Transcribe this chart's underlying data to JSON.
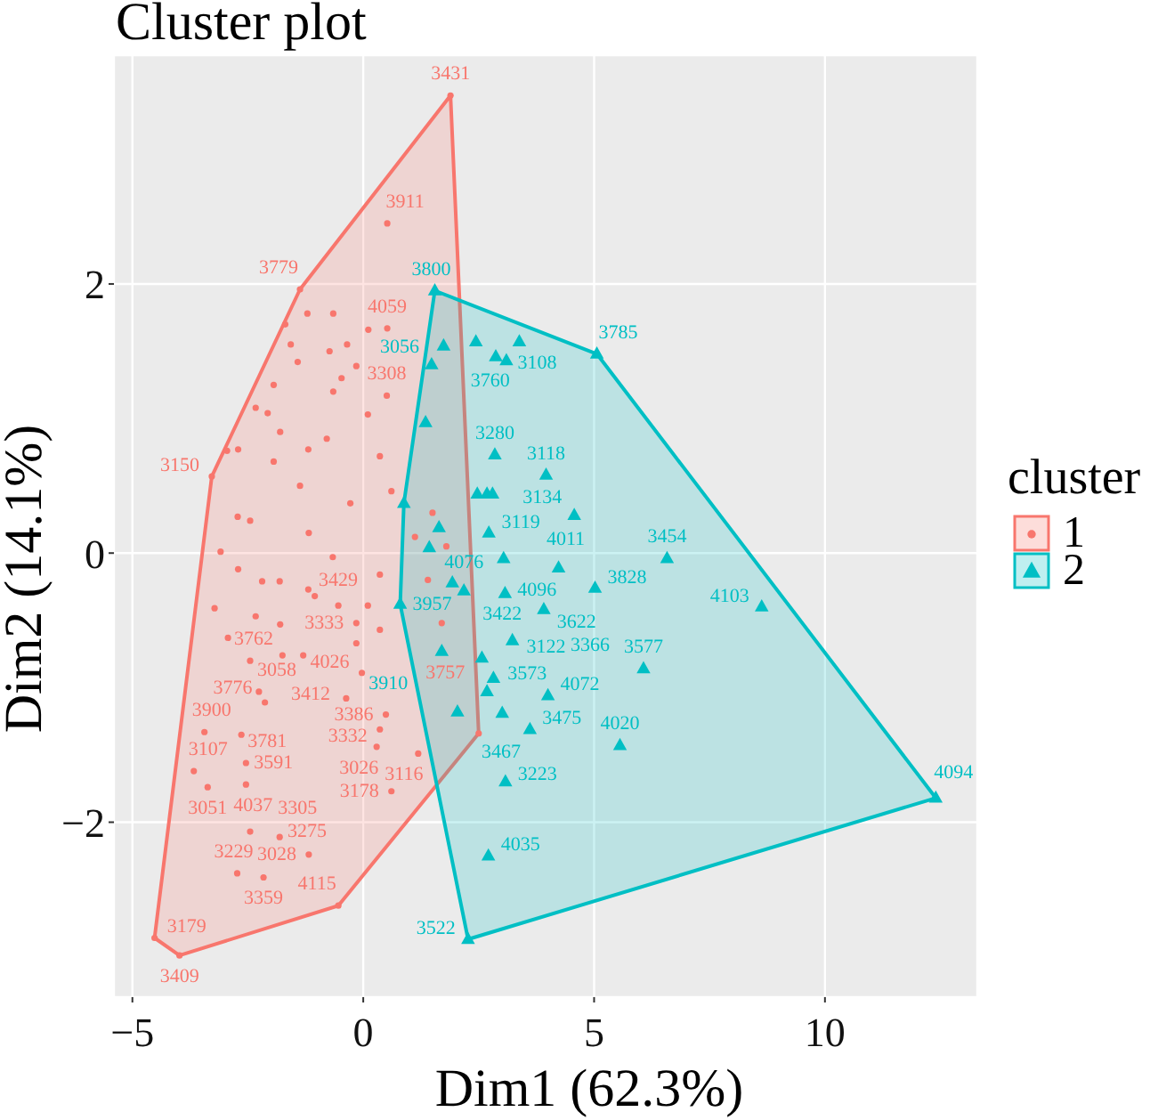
{
  "chart_data": {
    "type": "scatter",
    "title": "Cluster plot",
    "xlabel": "Dim1 (62.3%)",
    "ylabel": "Dim2 (14.1%)",
    "legend_title": "cluster",
    "legend": "right",
    "grid": true,
    "xlim": [
      -5.4,
      13.3
    ],
    "ylim": [
      -3.3,
      3.7
    ],
    "xticks": [
      {
        "value": -5,
        "label": "−5"
      },
      0,
      5,
      10
    ],
    "yticks": [
      {
        "value": -2,
        "label": "−2"
      },
      0,
      2
    ],
    "series": [
      {
        "type": "area",
        "color": "#f8766d",
        "x": [
          1.89,
          2.5,
          -0.54,
          -3.98,
          -4.52,
          -3.28,
          -1.37
        ],
        "values": [
          3.4,
          -1.34,
          -2.62,
          -2.99,
          -2.86,
          0.57,
          1.96
        ]
      },
      {
        "type": "area",
        "color": "#00bfc4",
        "x": [
          1.55,
          5.06,
          12.4,
          2.27,
          0.8,
          0.88
        ],
        "values": [
          1.95,
          1.48,
          -1.82,
          -2.87,
          -0.38,
          0.37
        ]
      },
      {
        "name": "1",
        "marker": "circle",
        "color": "#f8766d",
        "x": [
          1.89,
          0.52,
          -1.37,
          -1.21,
          0.52,
          -1.69,
          -0.73,
          -0.65,
          0.11,
          -0.35,
          -1.57,
          -0.15,
          -1.42,
          0.51,
          -0.47,
          -0.65,
          -2.33,
          -1.94,
          -2.07,
          -1.8,
          -2.95,
          -1.19,
          -2.71,
          -3.28,
          -1.94,
          -0.79,
          0.1,
          0.36,
          -1.37,
          -2.72,
          -2.45,
          -0.28,
          0.61,
          1.12,
          1.5,
          1.8,
          1.4,
          -3.09,
          -1.18,
          -2.71,
          -2.19,
          -1.81,
          -1.19,
          -0.66,
          0.36,
          -3.22,
          -2.33,
          -1.8,
          -1.05,
          0.1,
          0.36,
          -2.93,
          1.7,
          -0.15,
          -0.54,
          -2.45,
          -1.75,
          -1.3,
          -0.15,
          -0.03,
          -2.26,
          -2.13,
          -0.37,
          0.49,
          0.36,
          0.29,
          1.19,
          0.61,
          2.5,
          -3.44,
          -2.64,
          -2.54,
          -3.67,
          -3.37,
          -2.54,
          -2.45,
          -1.81,
          -1.18,
          -2.73,
          -2.16,
          -0.54,
          -3.98,
          -4.52
        ],
        "values": [
          3.4,
          2.45,
          1.96,
          1.78,
          1.67,
          1.7,
          1.5,
          1.78,
          1.66,
          1.55,
          1.55,
          1.39,
          1.42,
          1.17,
          1.3,
          1.2,
          1.08,
          1.25,
          1.04,
          0.9,
          0.76,
          0.77,
          0.77,
          0.57,
          0.68,
          0.85,
          1.03,
          0.72,
          0.5,
          0.27,
          0.24,
          0.37,
          0.46,
          0.12,
          0.3,
          0.05,
          -0.2,
          0.01,
          0.15,
          -0.12,
          -0.21,
          -0.21,
          -0.27,
          -0.03,
          -0.16,
          -0.41,
          -0.47,
          -0.53,
          -0.32,
          -0.39,
          -0.57,
          -0.63,
          -0.52,
          -0.52,
          -0.39,
          -0.8,
          -0.76,
          -0.76,
          -0.67,
          -0.89,
          -1.03,
          -1.11,
          -1.08,
          -1.2,
          -1.31,
          -1.44,
          -1.49,
          -1.77,
          -1.34,
          -1.33,
          -1.35,
          -1.56,
          -1.62,
          -1.74,
          -1.72,
          -2.07,
          -2.11,
          -2.24,
          -2.38,
          -2.41,
          -2.62,
          -2.99,
          -2.86
        ]
      },
      {
        "name": "2",
        "marker": "triangle",
        "color": "#00bfc4",
        "x": [
          1.55,
          5.06,
          1.48,
          1.74,
          2.44,
          2.87,
          3.1,
          3.38,
          1.35,
          2.85,
          3.96,
          2.47,
          2.68,
          2.8,
          0.88,
          4.57,
          1.64,
          2.72,
          1.43,
          3.04,
          6.58,
          4.23,
          1.93,
          5.02,
          2.18,
          3.07,
          0.8,
          8.63,
          3.91,
          3.23,
          1.7,
          2.57,
          6.07,
          2.82,
          2.68,
          4.0,
          2.04,
          3.01,
          3.61,
          5.56,
          3.08,
          12.4,
          2.71,
          2.27
        ],
        "values": [
          1.95,
          1.48,
          1.4,
          1.54,
          1.57,
          1.46,
          1.43,
          1.57,
          0.97,
          0.73,
          0.58,
          0.44,
          0.44,
          0.44,
          0.37,
          0.28,
          0.19,
          0.15,
          0.04,
          -0.04,
          -0.04,
          -0.11,
          -0.22,
          -0.26,
          -0.28,
          -0.3,
          -0.38,
          -0.4,
          -0.42,
          -0.65,
          -0.73,
          -0.78,
          -0.86,
          -0.93,
          -1.03,
          -1.06,
          -1.18,
          -1.19,
          -1.31,
          -1.43,
          -1.7,
          -1.82,
          -2.25,
          -2.87
        ]
      }
    ],
    "annotations": [
      {
        "text": "3431",
        "x": 1.89,
        "y": 3.4
      },
      {
        "text": "3911",
        "x": 0.52,
        "y": 2.45
      },
      {
        "text": "3779",
        "x": -1.37,
        "y": 1.96
      },
      {
        "text": "4059",
        "x": 0.52,
        "y": 1.67
      },
      {
        "text": "3308",
        "x": 0.51,
        "y": 1.17
      },
      {
        "text": "3150",
        "x": -3.28,
        "y": 0.57
      },
      {
        "text": "3757",
        "x": 1.7,
        "y": -0.52
      },
      {
        "text": "3333",
        "x": -0.15,
        "y": -0.52
      },
      {
        "text": "3429",
        "x": -0.54,
        "y": -0.39
      },
      {
        "text": "3762",
        "x": -2.45,
        "y": -0.8
      },
      {
        "text": "4026",
        "x": -0.03,
        "y": -0.89
      },
      {
        "text": "3058",
        "x": -2.26,
        "y": -1.03
      },
      {
        "text": "3776",
        "x": -2.13,
        "y": -1.11
      },
      {
        "text": "3412",
        "x": -0.37,
        "y": -1.08
      },
      {
        "text": "3386",
        "x": 0.49,
        "y": -1.2
      },
      {
        "text": "3332",
        "x": 0.36,
        "y": -1.31
      },
      {
        "text": "3026",
        "x": 0.29,
        "y": -1.44
      },
      {
        "text": "3116",
        "x": 1.19,
        "y": -1.49
      },
      {
        "text": "3178",
        "x": 0.61,
        "y": -1.77
      },
      {
        "text": "3900",
        "x": -3.44,
        "y": -1.33
      },
      {
        "text": "3591",
        "x": -2.64,
        "y": -1.35
      },
      {
        "text": "3781",
        "x": -2.54,
        "y": -1.56
      },
      {
        "text": "3107",
        "x": -3.67,
        "y": -1.62
      },
      {
        "text": "3051",
        "x": -3.37,
        "y": -1.74
      },
      {
        "text": "4037",
        "x": -2.54,
        "y": -1.72
      },
      {
        "text": "3275",
        "x": -2.45,
        "y": -2.07
      },
      {
        "text": "3305",
        "x": -1.81,
        "y": -2.11
      },
      {
        "text": "3028",
        "x": -1.18,
        "y": -2.24
      },
      {
        "text": "3229",
        "x": -2.73,
        "y": -2.38
      },
      {
        "text": "3359",
        "x": -2.16,
        "y": -2.41
      },
      {
        "text": "4115",
        "x": -0.54,
        "y": -2.62
      },
      {
        "text": "3409",
        "x": -3.98,
        "y": -2.99
      },
      {
        "text": "3179",
        "x": -4.52,
        "y": -2.86
      },
      {
        "text": "3800",
        "x": 1.55,
        "y": 1.95
      },
      {
        "text": "3785",
        "x": 5.06,
        "y": 1.48
      },
      {
        "text": "3056",
        "x": 1.48,
        "y": 1.4
      },
      {
        "text": "3760",
        "x": 2.44,
        "y": 1.57
      },
      {
        "text": "3108",
        "x": 3.38,
        "y": 1.57
      },
      {
        "text": "3280",
        "x": 2.85,
        "y": 0.73
      },
      {
        "text": "3118",
        "x": 3.96,
        "y": 0.58
      },
      {
        "text": "3134",
        "x": 4.57,
        "y": 0.28
      },
      {
        "text": "3119",
        "x": 2.72,
        "y": 0.15
      },
      {
        "text": "3454",
        "x": 6.58,
        "y": -0.04
      },
      {
        "text": "4011",
        "x": 4.23,
        "y": -0.11
      },
      {
        "text": "3422",
        "x": 1.93,
        "y": -0.22
      },
      {
        "text": "3828",
        "x": 5.02,
        "y": -0.26
      },
      {
        "text": "4076",
        "x": 2.18,
        "y": -0.28
      },
      {
        "text": "4096",
        "x": 3.07,
        "y": -0.3
      },
      {
        "text": "3957",
        "x": 0.8,
        "y": -0.38
      },
      {
        "text": "4103",
        "x": 8.63,
        "y": -0.4
      },
      {
        "text": "3366",
        "x": 3.91,
        "y": -0.42
      },
      {
        "text": "3622",
        "x": 3.23,
        "y": -0.65
      },
      {
        "text": "3910",
        "x": 1.7,
        "y": -0.73
      },
      {
        "text": "3122",
        "x": 2.57,
        "y": -0.78
      },
      {
        "text": "3577",
        "x": 6.07,
        "y": -0.86
      },
      {
        "text": "3467",
        "x": 2.68,
        "y": -1.03
      },
      {
        "text": "4072",
        "x": 4.0,
        "y": -1.06
      },
      {
        "text": "3573",
        "x": 3.01,
        "y": -1.19
      },
      {
        "text": "3475",
        "x": 3.61,
        "y": -1.31
      },
      {
        "text": "4020",
        "x": 5.56,
        "y": -1.43
      },
      {
        "text": "3223",
        "x": 3.08,
        "y": -1.7
      },
      {
        "text": "4094",
        "x": 12.4,
        "y": -1.82
      },
      {
        "text": "4035",
        "x": 2.71,
        "y": -2.25
      },
      {
        "text": "3522",
        "x": 2.27,
        "y": -2.87
      }
    ]
  }
}
